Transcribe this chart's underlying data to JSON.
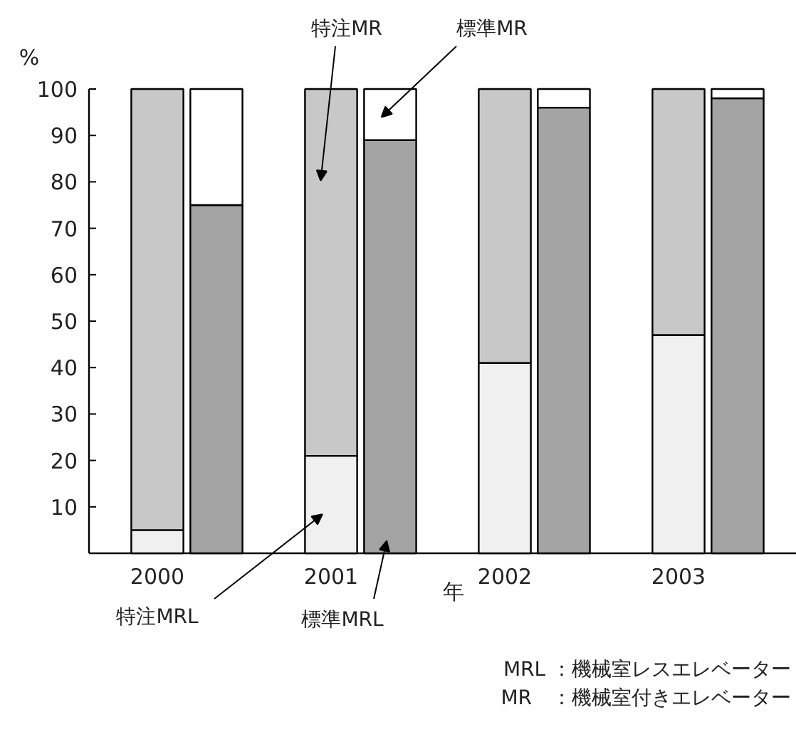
{
  "chart_data": {
    "type": "bar",
    "stacked": true,
    "xlabel": "年",
    "ylabel": "%",
    "categories": [
      "2000",
      null,
      "2001",
      null,
      "2002",
      null,
      "2003",
      null
    ],
    "series": [
      {
        "name": "特注MRL",
        "color": "#f0f0f0",
        "values": [
          5,
          null,
          21,
          null,
          41,
          null,
          47,
          null
        ]
      },
      {
        "name": "特注MR",
        "color": "#c8c8c8",
        "values": [
          95,
          null,
          79,
          null,
          59,
          null,
          53,
          null
        ]
      },
      {
        "name": "標準MRL",
        "color": "#a4a4a4",
        "values": [
          null,
          75,
          null,
          89,
          null,
          96,
          null,
          98
        ]
      },
      {
        "name": "標準MR",
        "color": "#ffffff",
        "values": [
          null,
          25,
          null,
          11,
          null,
          4,
          null,
          2
        ]
      }
    ],
    "ylim": [
      0,
      100
    ],
    "yticks": [
      10,
      20,
      30,
      40,
      50,
      60,
      70,
      80,
      90,
      100
    ],
    "grid": false,
    "annotations": [
      "MRL ：機械室レスエレベーター",
      "MR　：機械室付きエレベーター"
    ]
  }
}
